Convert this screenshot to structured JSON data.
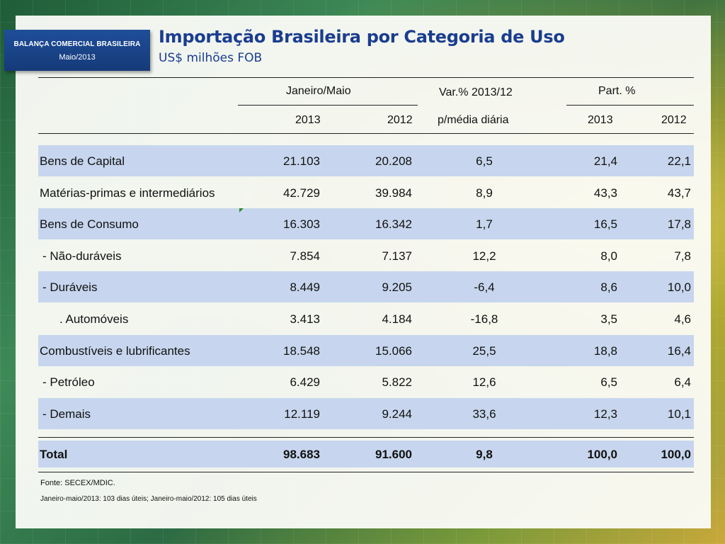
{
  "badge": {
    "line1": "BALANÇA COMERCIAL BRASILEIRA",
    "line2": "Maio/2013"
  },
  "title": "Importação Brasileira por Categoria de Uso",
  "subtitle": "US$ milhões FOB",
  "headers": {
    "group_jan_mai": "Janeiro/Maio",
    "var": "Var.% 2013/12",
    "var_sub": "p/média diária",
    "part": "Part. %",
    "y2013": "2013",
    "y2012": "2012",
    "p2013": "2013",
    "p2012": "2012"
  },
  "rows": [
    {
      "label": "Bens de Capital",
      "v2013": "21.103",
      "v2012": "20.208",
      "var": "6,5",
      "p2013": "21,4",
      "p2012": "22,1"
    },
    {
      "label": "Matérias-primas e intermediários",
      "v2013": "42.729",
      "v2012": "39.984",
      "var": "8,9",
      "p2013": "43,3",
      "p2012": "43,7"
    },
    {
      "label": "Bens de Consumo",
      "v2013": "16.303",
      "v2012": "16.342",
      "var": "1,7",
      "p2013": "16,5",
      "p2012": "17,8"
    },
    {
      "label": " - Não-duráveis",
      "v2013": "7.854",
      "v2012": "7.137",
      "var": "12,2",
      "p2013": "8,0",
      "p2012": "7,8"
    },
    {
      "label": " - Duráveis",
      "v2013": "8.449",
      "v2012": "9.205",
      "var": "-6,4",
      "p2013": "8,6",
      "p2012": "10,0"
    },
    {
      "label": ". Automóveis",
      "v2013": "3.413",
      "v2012": "4.184",
      "var": "-16,8",
      "p2013": "3,5",
      "p2012": "4,6"
    },
    {
      "label": "Combustíveis e lubrificantes",
      "v2013": "18.548",
      "v2012": "15.066",
      "var": "25,5",
      "p2013": "18,8",
      "p2012": "16,4"
    },
    {
      "label": " - Petróleo",
      "v2013": "6.429",
      "v2012": "5.822",
      "var": "12,6",
      "p2013": "6,5",
      "p2012": "6,4"
    },
    {
      "label": " - Demais",
      "v2013": "12.119",
      "v2012": "9.244",
      "var": "33,6",
      "p2013": "12,3",
      "p2012": "10,1"
    }
  ],
  "total": {
    "label": "Total",
    "v2013": "98.683",
    "v2012": "91.600",
    "var": "9,8",
    "p2013": "100,0",
    "p2012": "100,0"
  },
  "notes": {
    "source": "Fonte: SECEX/MDIC.",
    "days": "Janeiro-maio/2013: 103 dias úteis; Janeiro-maio/2012: 105 dias úteis"
  }
}
